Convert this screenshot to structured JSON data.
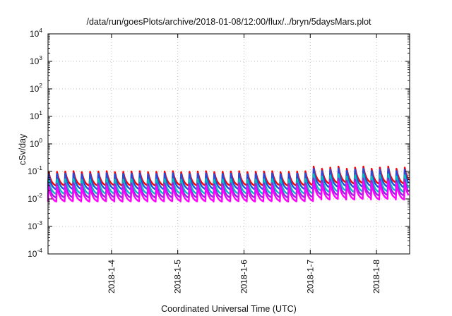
{
  "chart_data": {
    "type": "line",
    "title": "/data/run/goesPlots/archive/2018-01-08/12:00/flux/../bryn/5daysMars.plot",
    "xlabel": "Coordinated Universal Time (UTC)",
    "ylabel": "cSv/day",
    "xlim": [
      "2018-01-03T01:00",
      "2018-01-08T12:00"
    ],
    "ylim": [
      0.0001,
      10000
    ],
    "yscale": "log",
    "grid": true,
    "x_tick_labels": [
      "2018-1-4",
      "2018-1-5",
      "2018-1-6",
      "2018-1-7",
      "2018-1-8"
    ],
    "x_ticks": [
      "2018-01-04T00:00",
      "2018-01-05T00:00",
      "2018-01-06T00:00",
      "2018-01-07T00:00",
      "2018-01-08T00:00"
    ],
    "y_ticks": [
      {
        "base": "10",
        "exp": "4",
        "value": 10000
      },
      {
        "base": "10",
        "exp": "3",
        "value": 1000
      },
      {
        "base": "10",
        "exp": "2",
        "value": 100
      },
      {
        "base": "10",
        "exp": "1",
        "value": 10
      },
      {
        "base": "10",
        "exp": "0",
        "value": 1
      },
      {
        "base": "10",
        "exp": "-1",
        "value": 0.1
      },
      {
        "base": "10",
        "exp": "-2",
        "value": 0.01
      },
      {
        "base": "10",
        "exp": "-3",
        "value": 0.001
      },
      {
        "base": "10",
        "exp": "-4",
        "value": 0.0001
      }
    ],
    "pattern": "sawtooth, sharp rise then decay, period about 3 hours",
    "series": [
      {
        "color": "#ff0000",
        "peak": 0.095,
        "trough": 0.03
      },
      {
        "color": "#1f4fe0",
        "peak": 0.08,
        "trough": 0.022
      },
      {
        "color": "#00c0c0",
        "peak": 0.05,
        "trough": 0.015
      },
      {
        "color": "#8a2be2",
        "peak": 0.035,
        "trough": 0.011
      },
      {
        "color": "#ff00ff",
        "peak": 0.028,
        "trough": 0.008
      }
    ]
  }
}
